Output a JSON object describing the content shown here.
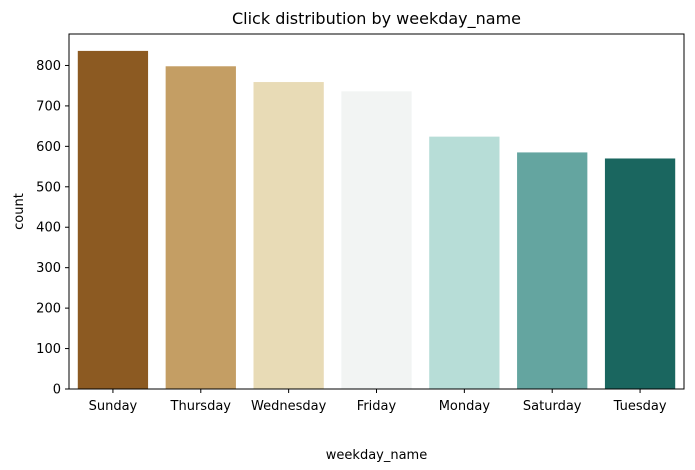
{
  "chart_data": {
    "type": "bar",
    "title": "Click distribution by weekday_name",
    "xlabel": "weekday_name",
    "ylabel": "count",
    "categories": [
      "Sunday",
      "Thursday",
      "Wednesday",
      "Friday",
      "Monday",
      "Saturday",
      "Tuesday"
    ],
    "values": [
      836,
      798,
      759,
      736,
      624,
      585,
      570
    ],
    "colors": [
      "#8c5a22",
      "#c49e64",
      "#e8dbb6",
      "#f2f4f3",
      "#b7ddd7",
      "#64a5a0",
      "#1a665f"
    ],
    "ylim": [
      0,
      877.8
    ],
    "yticks": [
      0,
      100,
      200,
      300,
      400,
      500,
      600,
      700,
      800
    ],
    "grid": false,
    "legend": "none"
  }
}
